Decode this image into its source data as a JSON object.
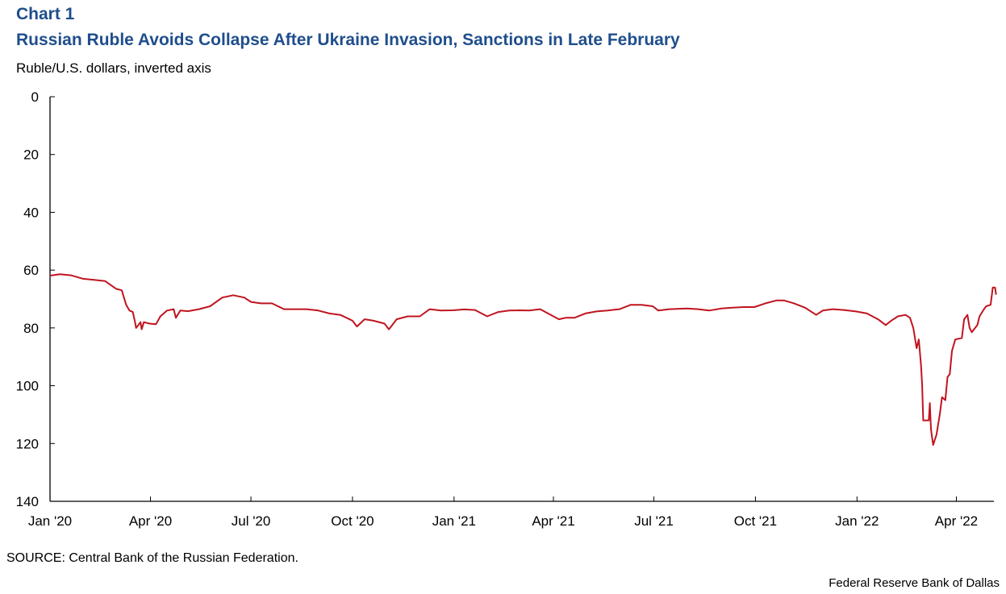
{
  "header": {
    "chart_number": "Chart 1",
    "title": "Russian Ruble Avoids Collapse After Ukraine Invasion, Sanctions in Late February",
    "y_unit": "Ruble/U.S. dollars, inverted axis"
  },
  "footer": {
    "source": "SOURCE: Central Bank of the Russian Federation.",
    "credit": "Federal Reserve  Bank of Dallas"
  },
  "colors": {
    "title": "#1f4e8c",
    "line": "#c0141f",
    "axis": "#000000"
  },
  "chart_data": {
    "type": "line",
    "title": "Russian Ruble Avoids Collapse After Ukraine Invasion, Sanctions in Late February",
    "ylabel": "Ruble/U.S. dollars, inverted axis",
    "xlabel": "",
    "y_inverted": true,
    "ylim": [
      0,
      140
    ],
    "yticks": [
      0,
      20,
      40,
      60,
      80,
      100,
      120,
      140
    ],
    "xlim": [
      "2020-01-01",
      "2022-05-05"
    ],
    "xticks": [
      {
        "date": "2020-01-01",
        "label": "Jan '20"
      },
      {
        "date": "2020-04-01",
        "label": "Apr '20"
      },
      {
        "date": "2020-07-01",
        "label": "Jul '20"
      },
      {
        "date": "2020-10-01",
        "label": "Oct '20"
      },
      {
        "date": "2021-01-01",
        "label": "Jan '21"
      },
      {
        "date": "2021-04-01",
        "label": "Apr '21"
      },
      {
        "date": "2021-07-01",
        "label": "Jul '21"
      },
      {
        "date": "2021-10-01",
        "label": "Oct '21"
      },
      {
        "date": "2022-01-01",
        "label": "Jan '22"
      },
      {
        "date": "2022-04-01",
        "label": "Apr '22"
      }
    ],
    "grid": false,
    "legend": "none",
    "series": [
      {
        "points": [
          [
            "2020-01-01",
            61.9
          ],
          [
            "2020-01-10",
            61.4
          ],
          [
            "2020-01-20",
            61.8
          ],
          [
            "2020-01-31",
            63.0
          ],
          [
            "2020-02-10",
            63.4
          ],
          [
            "2020-02-20",
            63.8
          ],
          [
            "2020-03-01",
            66.5
          ],
          [
            "2020-03-06",
            67.0
          ],
          [
            "2020-03-10",
            72.0
          ],
          [
            "2020-03-13",
            74.0
          ],
          [
            "2020-03-16",
            74.5
          ],
          [
            "2020-03-18",
            78.0
          ],
          [
            "2020-03-19",
            80.0
          ],
          [
            "2020-03-20",
            79.5
          ],
          [
            "2020-03-23",
            78.0
          ],
          [
            "2020-03-24",
            80.5
          ],
          [
            "2020-03-26",
            78.0
          ],
          [
            "2020-03-31",
            78.5
          ],
          [
            "2020-04-06",
            78.7
          ],
          [
            "2020-04-10",
            76.0
          ],
          [
            "2020-04-16",
            74.0
          ],
          [
            "2020-04-22",
            73.5
          ],
          [
            "2020-04-24",
            76.5
          ],
          [
            "2020-04-28",
            74.0
          ],
          [
            "2020-05-05",
            74.2
          ],
          [
            "2020-05-15",
            73.5
          ],
          [
            "2020-05-25",
            72.5
          ],
          [
            "2020-06-05",
            69.5
          ],
          [
            "2020-06-15",
            68.7
          ],
          [
            "2020-06-25",
            69.5
          ],
          [
            "2020-07-01",
            71.0
          ],
          [
            "2020-07-10",
            71.5
          ],
          [
            "2020-07-20",
            71.5
          ],
          [
            "2020-07-31",
            73.5
          ],
          [
            "2020-08-10",
            73.5
          ],
          [
            "2020-08-20",
            73.5
          ],
          [
            "2020-08-31",
            74.0
          ],
          [
            "2020-09-10",
            75.0
          ],
          [
            "2020-09-20",
            75.5
          ],
          [
            "2020-10-01",
            77.5
          ],
          [
            "2020-10-05",
            79.5
          ],
          [
            "2020-10-12",
            77.0
          ],
          [
            "2020-10-20",
            77.5
          ],
          [
            "2020-10-30",
            78.5
          ],
          [
            "2020-11-03",
            80.5
          ],
          [
            "2020-11-10",
            77.0
          ],
          [
            "2020-11-20",
            76.0
          ],
          [
            "2020-12-01",
            76.0
          ],
          [
            "2020-12-10",
            73.5
          ],
          [
            "2020-12-20",
            74.0
          ],
          [
            "2020-12-31",
            73.9
          ],
          [
            "2021-01-10",
            73.6
          ],
          [
            "2021-01-20",
            73.8
          ],
          [
            "2021-01-31",
            76.0
          ],
          [
            "2021-02-10",
            74.5
          ],
          [
            "2021-02-20",
            74.0
          ],
          [
            "2021-03-01",
            73.9
          ],
          [
            "2021-03-10",
            74.0
          ],
          [
            "2021-03-20",
            73.5
          ],
          [
            "2021-03-31",
            75.8
          ],
          [
            "2021-04-06",
            77.0
          ],
          [
            "2021-04-12",
            76.5
          ],
          [
            "2021-04-20",
            76.5
          ],
          [
            "2021-04-30",
            75.0
          ],
          [
            "2021-05-10",
            74.3
          ],
          [
            "2021-05-20",
            74.0
          ],
          [
            "2021-05-31",
            73.5
          ],
          [
            "2021-06-10",
            72.0
          ],
          [
            "2021-06-20",
            72.0
          ],
          [
            "2021-06-30",
            72.5
          ],
          [
            "2021-07-05",
            74.0
          ],
          [
            "2021-07-15",
            73.5
          ],
          [
            "2021-07-31",
            73.3
          ],
          [
            "2021-08-10",
            73.5
          ],
          [
            "2021-08-20",
            74.0
          ],
          [
            "2021-08-31",
            73.3
          ],
          [
            "2021-09-10",
            73.0
          ],
          [
            "2021-09-20",
            72.8
          ],
          [
            "2021-09-30",
            72.8
          ],
          [
            "2021-10-10",
            71.5
          ],
          [
            "2021-10-20",
            70.5
          ],
          [
            "2021-10-27",
            70.5
          ],
          [
            "2021-11-05",
            71.5
          ],
          [
            "2021-11-15",
            73.0
          ],
          [
            "2021-11-25",
            75.5
          ],
          [
            "2021-12-01",
            74.0
          ],
          [
            "2021-12-10",
            73.5
          ],
          [
            "2021-12-20",
            73.8
          ],
          [
            "2021-12-31",
            74.3
          ],
          [
            "2022-01-10",
            75.0
          ],
          [
            "2022-01-20",
            77.0
          ],
          [
            "2022-01-27",
            79.0
          ],
          [
            "2022-02-01",
            77.5
          ],
          [
            "2022-02-07",
            76.0
          ],
          [
            "2022-02-14",
            75.5
          ],
          [
            "2022-02-18",
            76.5
          ],
          [
            "2022-02-21",
            80.0
          ],
          [
            "2022-02-24",
            87.0
          ],
          [
            "2022-02-26",
            84.0
          ],
          [
            "2022-02-28",
            93.0
          ],
          [
            "2022-03-01",
            100.0
          ],
          [
            "2022-03-02",
            112.0
          ],
          [
            "2022-03-07",
            112.0
          ],
          [
            "2022-03-08",
            106.0
          ],
          [
            "2022-03-09",
            115.0
          ],
          [
            "2022-03-10",
            118.0
          ],
          [
            "2022-03-11",
            120.5
          ],
          [
            "2022-03-14",
            117.0
          ],
          [
            "2022-03-17",
            110.0
          ],
          [
            "2022-03-19",
            104.0
          ],
          [
            "2022-03-22",
            105.0
          ],
          [
            "2022-03-24",
            97.0
          ],
          [
            "2022-03-26",
            96.0
          ],
          [
            "2022-03-28",
            88.0
          ],
          [
            "2022-03-31",
            84.0
          ],
          [
            "2022-04-06",
            83.5
          ],
          [
            "2022-04-08",
            77.0
          ],
          [
            "2022-04-11",
            75.5
          ],
          [
            "2022-04-13",
            80.0
          ],
          [
            "2022-04-15",
            81.5
          ],
          [
            "2022-04-20",
            79.0
          ],
          [
            "2022-04-22",
            76.0
          ],
          [
            "2022-04-26",
            73.5
          ],
          [
            "2022-04-28",
            72.5
          ],
          [
            "2022-05-02",
            72.0
          ],
          [
            "2022-05-03",
            69.0
          ],
          [
            "2022-05-04",
            66.0
          ],
          [
            "2022-05-06",
            66.0
          ],
          [
            "2022-05-07",
            68.5
          ]
        ]
      }
    ]
  }
}
